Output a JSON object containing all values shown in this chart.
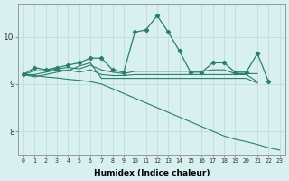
{
  "xlabel": "Humidex (Indice chaleur)",
  "background_color": "#d8f0ef",
  "grid_color": "#c0dedd",
  "line_color": "#2a7d6f",
  "xlim": [
    -0.5,
    23.5
  ],
  "ylim": [
    7.5,
    10.7
  ],
  "yticks": [
    8,
    9,
    10
  ],
  "xticks": [
    0,
    1,
    2,
    3,
    4,
    5,
    6,
    7,
    8,
    9,
    10,
    11,
    12,
    13,
    14,
    15,
    16,
    17,
    18,
    19,
    20,
    21,
    22,
    23
  ],
  "series": [
    {
      "x": [
        0,
        1,
        2,
        3,
        4,
        5,
        6,
        7,
        8,
        9,
        10,
        11,
        12,
        13,
        14,
        15,
        16,
        17,
        18,
        19,
        20,
        21,
        22
      ],
      "y": [
        9.2,
        9.35,
        9.3,
        9.35,
        9.4,
        9.45,
        9.55,
        9.55,
        9.3,
        9.25,
        10.1,
        10.15,
        10.45,
        10.1,
        9.7,
        9.25,
        9.25,
        9.45,
        9.45,
        9.25,
        9.25,
        9.65,
        9.05
      ],
      "marker": true,
      "linestyle": "-"
    },
    {
      "x": [
        0,
        1,
        2,
        3,
        4,
        5,
        6,
        7,
        8,
        9,
        10,
        11,
        12,
        13,
        14,
        15,
        16,
        17,
        18,
        19,
        20,
        21
      ],
      "y": [
        9.2,
        9.15,
        9.2,
        9.25,
        9.3,
        9.25,
        9.3,
        9.2,
        9.18,
        9.18,
        9.2,
        9.2,
        9.2,
        9.2,
        9.2,
        9.2,
        9.2,
        9.2,
        9.2,
        9.2,
        9.2,
        9.05
      ],
      "marker": false,
      "linestyle": "-"
    },
    {
      "x": [
        0,
        1,
        2,
        3,
        4,
        5,
        6,
        7,
        8,
        9,
        10,
        11,
        12,
        13,
        14,
        15,
        16,
        17,
        18,
        19,
        20,
        21
      ],
      "y": [
        9.2,
        9.28,
        9.28,
        9.32,
        9.35,
        9.32,
        9.4,
        9.3,
        9.25,
        9.22,
        9.27,
        9.27,
        9.27,
        9.27,
        9.27,
        9.27,
        9.27,
        9.3,
        9.3,
        9.22,
        9.22,
        9.22
      ],
      "marker": false,
      "linestyle": "-"
    },
    {
      "x": [
        0,
        1,
        2,
        3,
        4,
        5,
        6,
        7,
        8,
        9,
        10,
        11,
        12,
        13,
        14,
        15,
        16,
        17,
        18,
        19,
        20,
        21
      ],
      "y": [
        9.2,
        9.2,
        9.25,
        9.3,
        9.28,
        9.38,
        9.45,
        9.12,
        9.12,
        9.12,
        9.12,
        9.12,
        9.12,
        9.12,
        9.12,
        9.12,
        9.12,
        9.12,
        9.12,
        9.12,
        9.12,
        9.02
      ],
      "marker": false,
      "linestyle": "-"
    },
    {
      "x": [
        0,
        1,
        2,
        3,
        4,
        5,
        6,
        7,
        8,
        9,
        10,
        11,
        12,
        13,
        14,
        15,
        16,
        17,
        18,
        19,
        20,
        21,
        22,
        23
      ],
      "y": [
        9.2,
        9.18,
        9.15,
        9.13,
        9.1,
        9.08,
        9.05,
        9.0,
        8.9,
        8.8,
        8.7,
        8.6,
        8.5,
        8.4,
        8.3,
        8.2,
        8.1,
        8.0,
        7.9,
        7.83,
        7.78,
        7.72,
        7.65,
        7.6
      ],
      "marker": false,
      "linestyle": "-"
    }
  ]
}
